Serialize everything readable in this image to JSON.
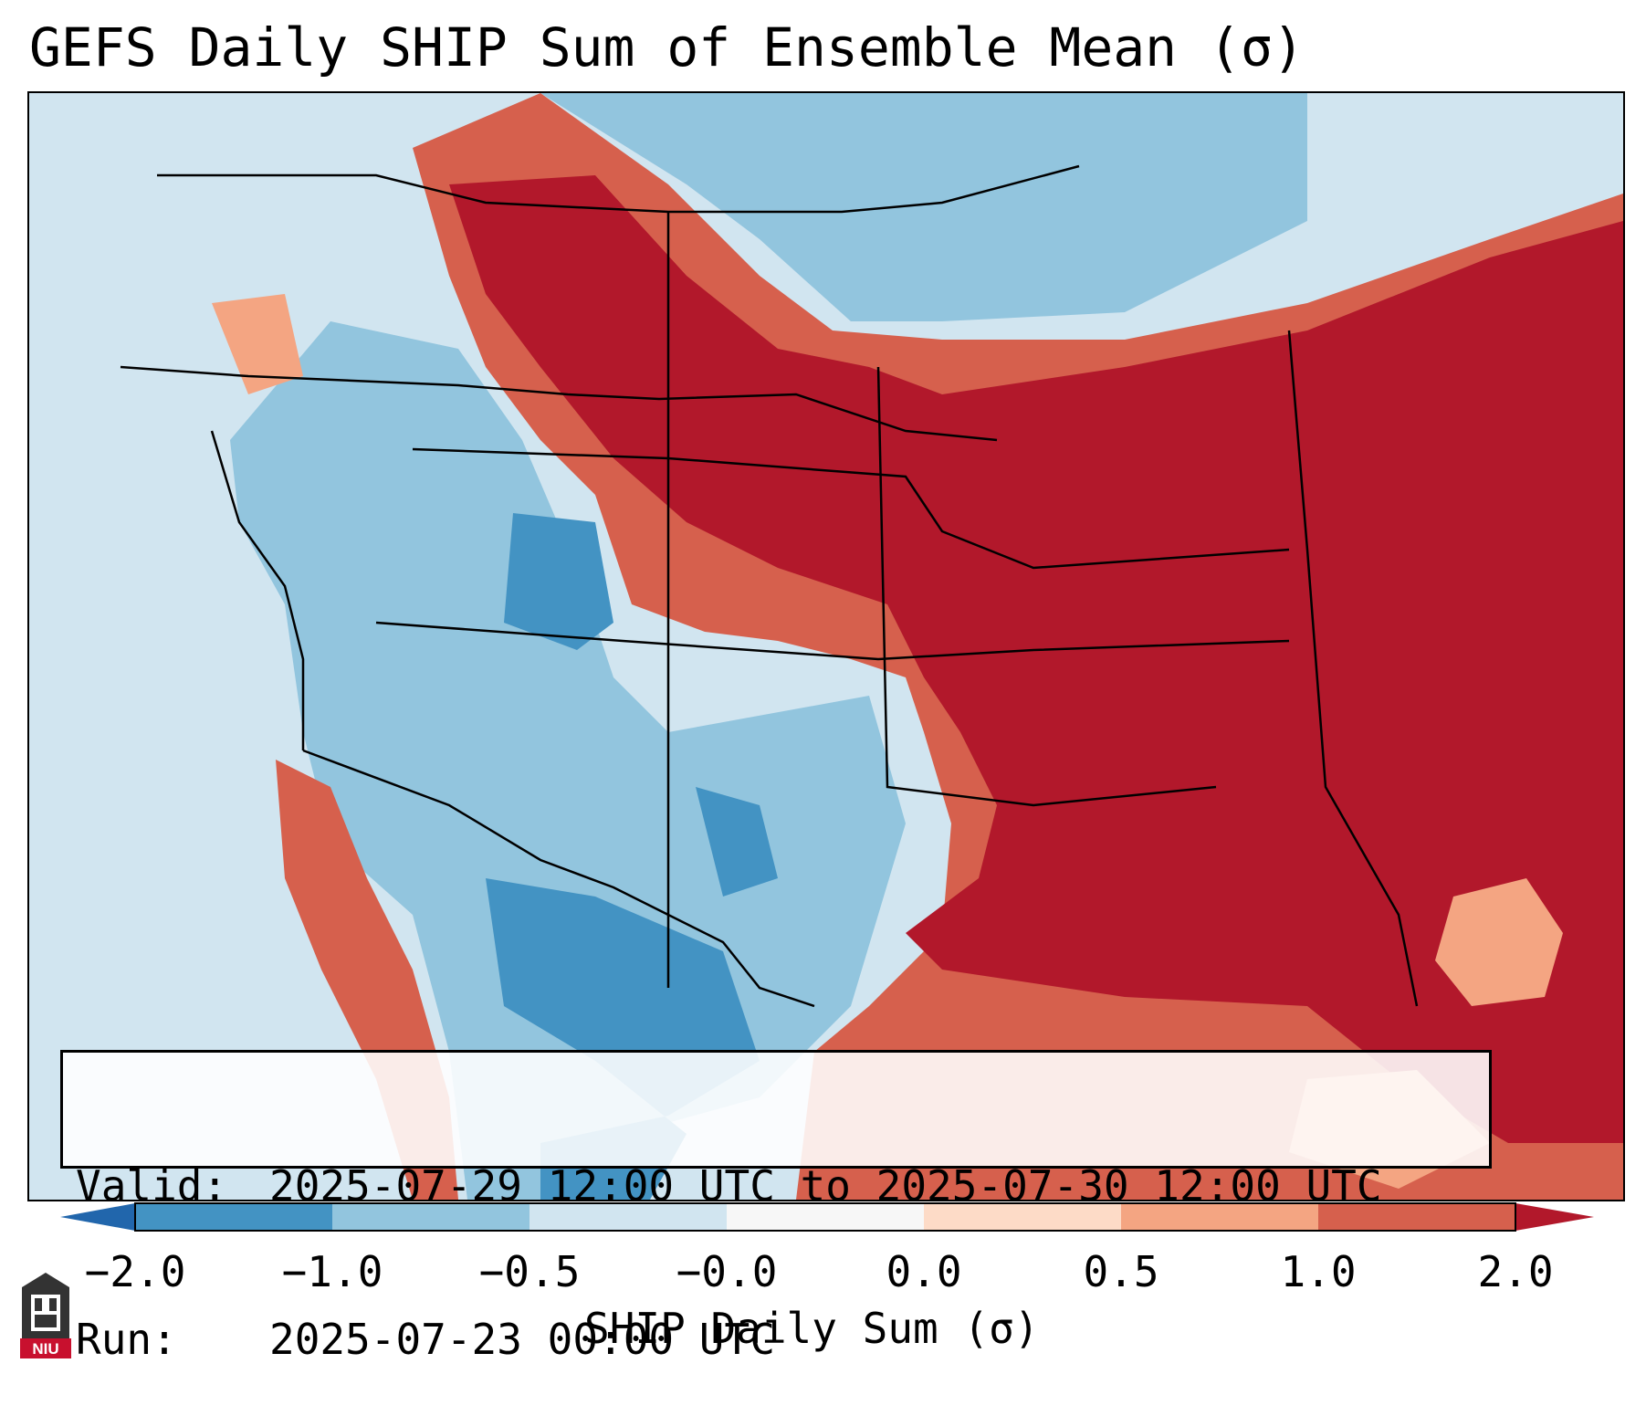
{
  "title": "GEFS Daily SHIP Sum of Ensemble Mean (σ)",
  "info": {
    "valid_label": "Valid:",
    "valid_value": "2025-07-29 12:00 UTC to 2025-07-30 12:00 UTC",
    "run_label": "Run:",
    "run_value": "2025-07-23 00:00 UTC"
  },
  "colorbar": {
    "label": "SHIP Daily Sum (σ)",
    "ticks": [
      "−2.0",
      "−1.0",
      "−0.5",
      "−0.0",
      "0.0",
      "0.5",
      "1.0",
      "2.0"
    ],
    "colors": [
      "#4393c3",
      "#92c5de",
      "#d1e5f0",
      "#f7f7f7",
      "#fddbc7",
      "#f4a582",
      "#d6604d",
      "#b2182b"
    ],
    "extend_low_color": "#2166ac",
    "extend_high_color": "#b2182b"
  },
  "logo": {
    "text": "NIU",
    "icon": "niu-logo-icon"
  },
  "map": {
    "region": "Contiguous United States",
    "palette": {
      "strong_negative": "#4393c3",
      "negative": "#92c5de",
      "weak_negative": "#d1e5f0",
      "weak_positive": "#fddbc7",
      "positive": "#f4a582",
      "moderate_positive": "#d6604d",
      "strong_positive": "#b2182b"
    }
  }
}
